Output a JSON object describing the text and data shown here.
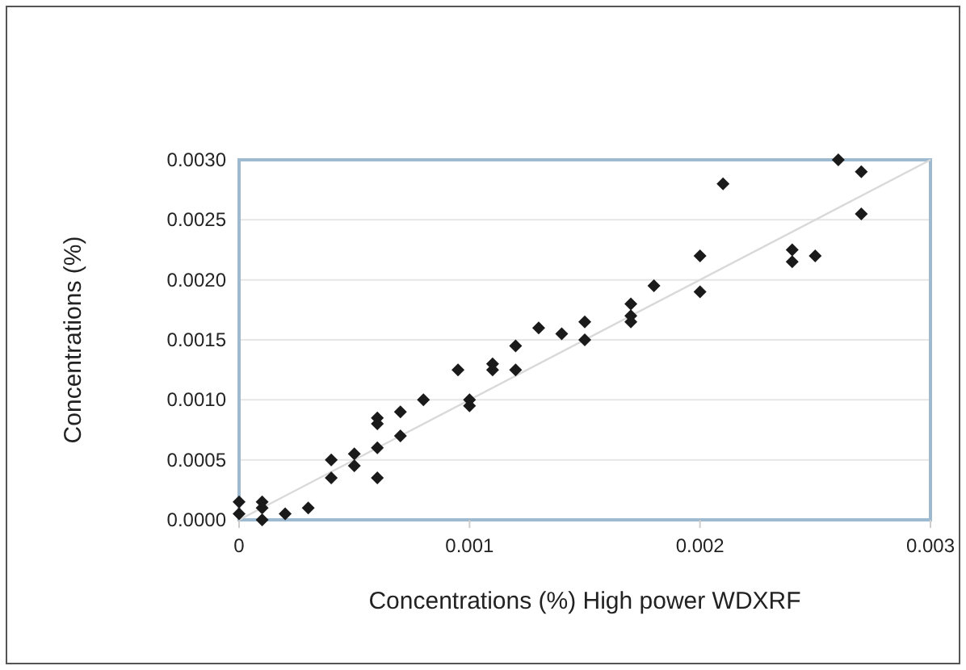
{
  "chart_data": {
    "type": "scatter",
    "xlabel": "Concentrations (%) High power WDXRF",
    "ylabel": "Concentrations (%)",
    "xlim": [
      0,
      0.003
    ],
    "ylim": [
      0,
      0.003
    ],
    "xticks": [
      0,
      0.001,
      0.002,
      0.003
    ],
    "yticks": [
      {
        "value": 0,
        "label": "0.0000"
      },
      {
        "value": 0.0005,
        "label": "0.0005"
      },
      {
        "value": 0.001,
        "label": "0.0010"
      },
      {
        "value": 0.0015,
        "label": "0.0015"
      },
      {
        "value": 0.002,
        "label": "0.0020"
      },
      {
        "value": 0.0025,
        "label": "0.0025"
      },
      {
        "value": 0.003,
        "label": "0.0030"
      }
    ],
    "grid": "y",
    "series": [
      {
        "marker": "diamond",
        "color": "#1a1a1a",
        "x": [
          0,
          0,
          0.0001,
          0.0001,
          0.0001,
          0.0002,
          0.0003,
          0.0004,
          0.0004,
          0.0005,
          0.0005,
          0.0006,
          0.0006,
          0.0006,
          0.0006,
          0.0007,
          0.0007,
          0.0008,
          0.00095,
          0.001,
          0.001,
          0.0011,
          0.0011,
          0.0012,
          0.0012,
          0.0013,
          0.0014,
          0.0015,
          0.0015,
          0.0017,
          0.0017,
          0.0017,
          0.0018,
          0.002,
          0.002,
          0.0021,
          0.0024,
          0.0024,
          0.0025,
          0.0026,
          0.0027,
          0.0027
        ],
        "values": [
          5e-05,
          0.00015,
          0,
          0.0001,
          0.00015,
          5e-05,
          0.0001,
          0.00035,
          0.0005,
          0.00045,
          0.00055,
          0.00035,
          0.0006,
          0.0008,
          0.00085,
          0.0007,
          0.0009,
          0.001,
          0.00125,
          0.00095,
          0.001,
          0.00125,
          0.0013,
          0.00125,
          0.00145,
          0.0016,
          0.00155,
          0.0015,
          0.00165,
          0.00165,
          0.0017,
          0.0018,
          0.00195,
          0.0019,
          0.0022,
          0.0028,
          0.00215,
          0.00225,
          0.0022,
          0.003,
          0.0029,
          0.00255
        ]
      },
      {
        "type": "line",
        "marker": "none",
        "color": "#d9d9d9",
        "x": [
          0,
          0.003
        ],
        "values": [
          0,
          0.003
        ]
      }
    ]
  }
}
